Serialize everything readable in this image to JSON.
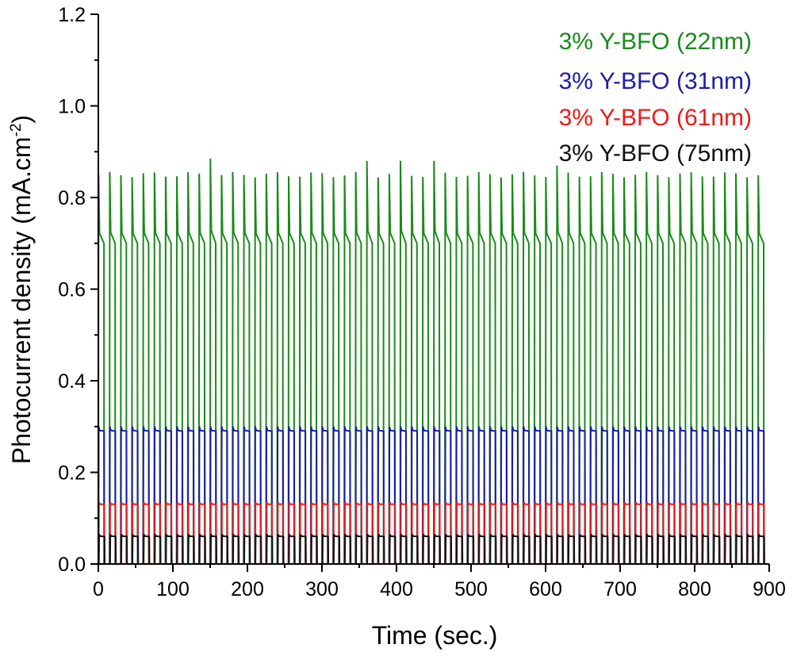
{
  "chart_data": {
    "type": "line",
    "xlabel": "Time (sec.)",
    "ylabel": "Photocurrent density (mA.cm",
    "ylabel_superscript": "-2",
    "ylabel_suffix": ")",
    "xlim": [
      0,
      900
    ],
    "ylim": [
      0,
      1.2
    ],
    "x_ticks": [
      "0",
      "100",
      "200",
      "300",
      "400",
      "500",
      "600",
      "700",
      "800",
      "900"
    ],
    "y_ticks": [
      "0.0",
      "0.2",
      "0.4",
      "0.6",
      "0.8",
      "1.0",
      "1.2"
    ],
    "grid": false,
    "legend_position": "top-right",
    "cycle_period_sec": 15,
    "series": [
      {
        "name": "3% Y-BFO (22nm)",
        "color": "#1a8a1a",
        "on_level": 0.7,
        "spike_level": 0.85,
        "off_level": 0.0,
        "extra_spikes": [
          {
            "x": 150,
            "y": 0.885
          },
          {
            "x": 355,
            "y": 0.88
          },
          {
            "x": 405,
            "y": 0.88
          },
          {
            "x": 445,
            "y": 0.88
          },
          {
            "x": 610,
            "y": 0.87
          }
        ]
      },
      {
        "name": "3% Y-BFO (31nm)",
        "color": "#1c1ca8",
        "on_level": 0.29,
        "spike_level": 0.3,
        "off_level": 0.0
      },
      {
        "name": "3% Y-BFO (61nm)",
        "color": "#e81c1c",
        "on_level": 0.13,
        "spike_level": 0.135,
        "off_level": 0.0
      },
      {
        "name": "3% Y-BFO (75nm)",
        "color": "#111111",
        "on_level": 0.06,
        "spike_level": 0.065,
        "off_level": 0.0
      }
    ]
  }
}
